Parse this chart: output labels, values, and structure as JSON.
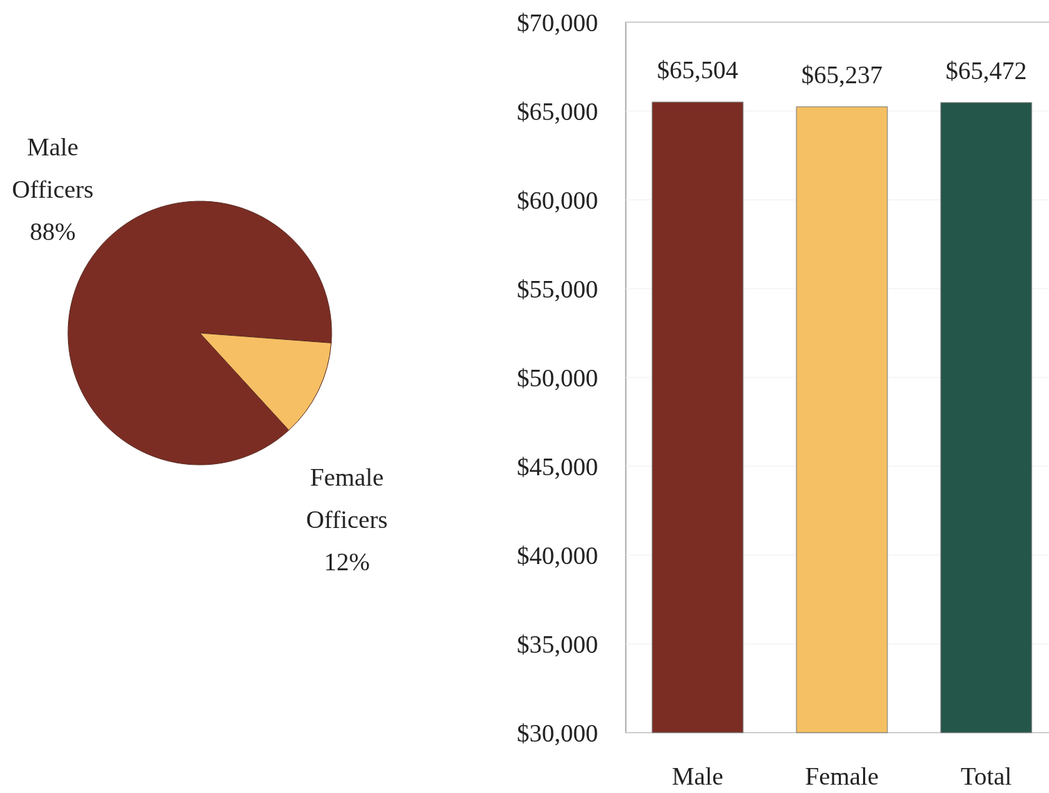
{
  "chart_data": [
    {
      "type": "pie",
      "categories": [
        "Male Officers",
        "Female Officers"
      ],
      "values": [
        88,
        12
      ],
      "value_labels": [
        "88%",
        "12%"
      ],
      "colors": [
        "#7b2d24",
        "#f6bf64"
      ]
    },
    {
      "type": "bar",
      "categories": [
        "Male",
        "Female",
        "Total"
      ],
      "values": [
        65504,
        65237,
        65472
      ],
      "colors": [
        "#7b2d24",
        "#f5c063",
        "#24564a"
      ],
      "value_labels": [
        "$65,504",
        "$65,237",
        "$65,472"
      ],
      "ylim": [
        30000,
        70000
      ],
      "yticks": [
        {
          "value": 30000,
          "label": "$30,000"
        },
        {
          "value": 35000,
          "label": "$35,000"
        },
        {
          "value": 40000,
          "label": "$40,000"
        },
        {
          "value": 45000,
          "label": "$45,000"
        },
        {
          "value": 50000,
          "label": "$50,000"
        },
        {
          "value": 55000,
          "label": "$55,000"
        },
        {
          "value": 60000,
          "label": "$60,000"
        },
        {
          "value": 65000,
          "label": "$65,000"
        },
        {
          "value": 70000,
          "label": "$70,000"
        }
      ],
      "grid": "y"
    }
  ]
}
